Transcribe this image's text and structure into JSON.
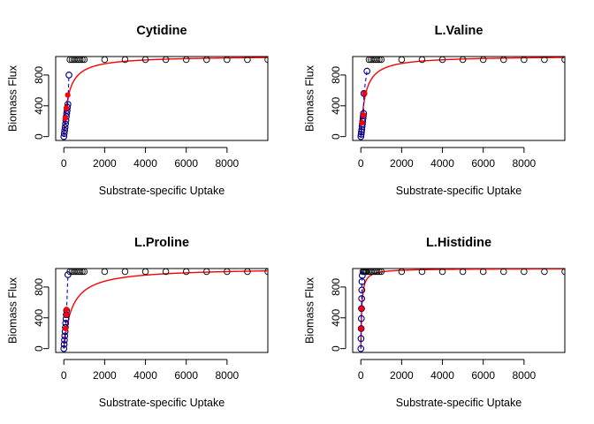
{
  "chart_data": [
    {
      "type": "scatter",
      "title": "Cytidine",
      "xlabel": "Substrate-specific Uptake",
      "ylabel": "Biomass Flux",
      "xlim": [
        -400,
        10000
      ],
      "ylim": [
        -50,
        1040
      ],
      "x_ticks": [
        "0",
        "2000",
        "4000",
        "6000",
        "8000"
      ],
      "y_ticks": [
        "0",
        "400",
        "800"
      ],
      "colors": {
        "black_points": "#000000",
        "blue_points": "#00008B",
        "red_points": "#FF0000",
        "red_fit": "#FF0000",
        "blue_dashed": "#0000FF"
      },
      "series": [
        {
          "points": [
            [
              0,
              0
            ],
            [
              20,
              40
            ],
            [
              40,
              80
            ],
            [
              60,
              120
            ],
            [
              80,
              165
            ],
            [
              100,
              210
            ],
            [
              120,
              260
            ],
            [
              140,
              300
            ],
            [
              160,
              340
            ],
            [
              180,
              380
            ],
            [
              200,
              420
            ],
            [
              250,
              800
            ],
            [
              300,
              1000
            ],
            [
              400,
              1000
            ],
            [
              500,
              1000
            ],
            [
              600,
              1000
            ],
            [
              700,
              1000
            ],
            [
              800,
              1000
            ],
            [
              900,
              1000
            ],
            [
              1000,
              1000
            ],
            [
              2000,
              1000
            ],
            [
              3000,
              1000
            ],
            [
              4000,
              1000
            ],
            [
              5000,
              1000
            ],
            [
              6000,
              1000
            ],
            [
              7000,
              1000
            ],
            [
              8000,
              1000
            ],
            [
              9000,
              1000
            ],
            [
              10000,
              1000
            ]
          ]
        },
        {
          "points": [
            [
              0,
              0
            ],
            [
              20,
              40
            ],
            [
              40,
              80
            ],
            [
              60,
              120
            ],
            [
              80,
              165
            ],
            [
              100,
              210
            ],
            [
              120,
              260
            ],
            [
              140,
              300
            ],
            [
              160,
              340
            ],
            [
              180,
              380
            ],
            [
              200,
              420
            ],
            [
              250,
              800
            ]
          ]
        },
        {
          "points": [
            [
              70,
              240
            ],
            [
              120,
              370
            ],
            [
              190,
              540
            ]
          ]
        }
      ],
      "fit": {
        "vmax": 1050,
        "km": 220
      }
    },
    {
      "type": "scatter",
      "title": "L.Valine",
      "xlabel": "Substrate-specific Uptake",
      "ylabel": "Biomass Flux",
      "xlim": [
        -400,
        10000
      ],
      "ylim": [
        -50,
        1040
      ],
      "x_ticks": [
        "0",
        "2000",
        "4000",
        "6000",
        "8000"
      ],
      "y_ticks": [
        "0",
        "400",
        "800"
      ],
      "colors": {
        "black_points": "#000000",
        "blue_points": "#00008B",
        "red_points": "#FF0000",
        "red_fit": "#FF0000",
        "blue_dashed": "#0000FF"
      },
      "series": [
        {
          "points": [
            [
              0,
              0
            ],
            [
              15,
              30
            ],
            [
              30,
              60
            ],
            [
              45,
              90
            ],
            [
              60,
              130
            ],
            [
              75,
              165
            ],
            [
              90,
              200
            ],
            [
              105,
              235
            ],
            [
              120,
              270
            ],
            [
              135,
              300
            ],
            [
              150,
              560
            ],
            [
              300,
              850
            ],
            [
              400,
              1000
            ],
            [
              500,
              1000
            ],
            [
              600,
              1000
            ],
            [
              700,
              1000
            ],
            [
              800,
              1000
            ],
            [
              900,
              1000
            ],
            [
              1000,
              1000
            ],
            [
              2000,
              1000
            ],
            [
              3000,
              1000
            ],
            [
              4000,
              1000
            ],
            [
              5000,
              1000
            ],
            [
              6000,
              1000
            ],
            [
              7000,
              1000
            ],
            [
              8000,
              1000
            ],
            [
              9000,
              1000
            ],
            [
              10000,
              1000
            ]
          ]
        },
        {
          "points": [
            [
              0,
              0
            ],
            [
              15,
              30
            ],
            [
              30,
              60
            ],
            [
              45,
              90
            ],
            [
              60,
              130
            ],
            [
              75,
              165
            ],
            [
              90,
              200
            ],
            [
              105,
              235
            ],
            [
              120,
              270
            ],
            [
              135,
              300
            ],
            [
              150,
              560
            ],
            [
              300,
              850
            ]
          ]
        },
        {
          "points": [
            [
              60,
              180
            ],
            [
              130,
              280
            ],
            [
              180,
              560
            ]
          ]
        }
      ],
      "fit": {
        "vmax": 1050,
        "km": 210
      }
    },
    {
      "type": "scatter",
      "title": "L.Proline",
      "xlabel": "Substrate-specific Uptake",
      "ylabel": "Biomass Flux",
      "xlim": [
        -400,
        10000
      ],
      "ylim": [
        -50,
        1040
      ],
      "x_ticks": [
        "0",
        "2000",
        "4000",
        "6000",
        "8000"
      ],
      "y_ticks": [
        "0",
        "400",
        "800"
      ],
      "colors": {
        "black_points": "#000000",
        "blue_points": "#00008B",
        "red_points": "#FF0000",
        "red_fit": "#FF0000",
        "blue_dashed": "#0000FF"
      },
      "series": [
        {
          "points": [
            [
              0,
              0
            ],
            [
              15,
              55
            ],
            [
              30,
              110
            ],
            [
              45,
              165
            ],
            [
              60,
              220
            ],
            [
              75,
              275
            ],
            [
              90,
              330
            ],
            [
              105,
              385
            ],
            [
              120,
              440
            ],
            [
              135,
              495
            ],
            [
              200,
              960
            ],
            [
              300,
              1000
            ],
            [
              400,
              1000
            ],
            [
              500,
              1000
            ],
            [
              600,
              1000
            ],
            [
              700,
              1000
            ],
            [
              800,
              1000
            ],
            [
              900,
              1000
            ],
            [
              1000,
              1000
            ],
            [
              2000,
              1000
            ],
            [
              3000,
              1000
            ],
            [
              4000,
              1000
            ],
            [
              5000,
              1000
            ],
            [
              6000,
              1000
            ],
            [
              7000,
              1000
            ],
            [
              8000,
              1000
            ],
            [
              9000,
              1000
            ],
            [
              10000,
              1000
            ]
          ]
        },
        {
          "points": [
            [
              0,
              0
            ],
            [
              15,
              55
            ],
            [
              30,
              110
            ],
            [
              45,
              165
            ],
            [
              60,
              220
            ],
            [
              75,
              275
            ],
            [
              90,
              330
            ],
            [
              105,
              385
            ],
            [
              120,
              440
            ],
            [
              135,
              495
            ],
            [
              200,
              960
            ]
          ]
        },
        {
          "points": [
            [
              80,
              260
            ],
            [
              120,
              440
            ],
            [
              130,
              510
            ]
          ]
        }
      ],
      "fit": {
        "vmax": 1050,
        "km": 400
      }
    },
    {
      "type": "scatter",
      "title": "L.Histidine",
      "xlabel": "Substrate-specific Uptake",
      "ylabel": "Biomass Flux",
      "xlim": [
        -400,
        10000
      ],
      "ylim": [
        -50,
        1040
      ],
      "x_ticks": [
        "0",
        "2000",
        "4000",
        "6000",
        "8000"
      ],
      "y_ticks": [
        "0",
        "400",
        "800"
      ],
      "colors": {
        "black_points": "#000000",
        "blue_points": "#00008B",
        "red_points": "#FF0000",
        "red_fit": "#FF0000",
        "blue_dashed": "#0000FF"
      },
      "series": [
        {
          "points": [
            [
              0,
              0
            ],
            [
              8,
              130
            ],
            [
              16,
              260
            ],
            [
              24,
              390
            ],
            [
              32,
              520
            ],
            [
              40,
              650
            ],
            [
              48,
              760
            ],
            [
              56,
              870
            ],
            [
              70,
              950
            ],
            [
              100,
              1000
            ],
            [
              150,
              1000
            ],
            [
              200,
              1000
            ],
            [
              250,
              1000
            ],
            [
              300,
              1000
            ],
            [
              400,
              1000
            ],
            [
              500,
              1000
            ],
            [
              600,
              1000
            ],
            [
              700,
              1000
            ],
            [
              800,
              1000
            ],
            [
              900,
              1000
            ],
            [
              1000,
              1000
            ],
            [
              2000,
              1000
            ],
            [
              3000,
              1000
            ],
            [
              4000,
              1000
            ],
            [
              5000,
              1000
            ],
            [
              6000,
              1000
            ],
            [
              7000,
              1000
            ],
            [
              8000,
              1000
            ],
            [
              9000,
              1000
            ],
            [
              10000,
              1000
            ]
          ]
        },
        {
          "points": [
            [
              0,
              0
            ],
            [
              8,
              130
            ],
            [
              16,
              260
            ],
            [
              24,
              390
            ],
            [
              32,
              520
            ],
            [
              40,
              650
            ],
            [
              48,
              760
            ],
            [
              56,
              870
            ],
            [
              70,
              950
            ]
          ]
        },
        {
          "points": [
            [
              16,
              260
            ],
            [
              32,
              520
            ]
          ]
        }
      ],
      "fit": {
        "vmax": 1040,
        "km": 45
      }
    }
  ]
}
